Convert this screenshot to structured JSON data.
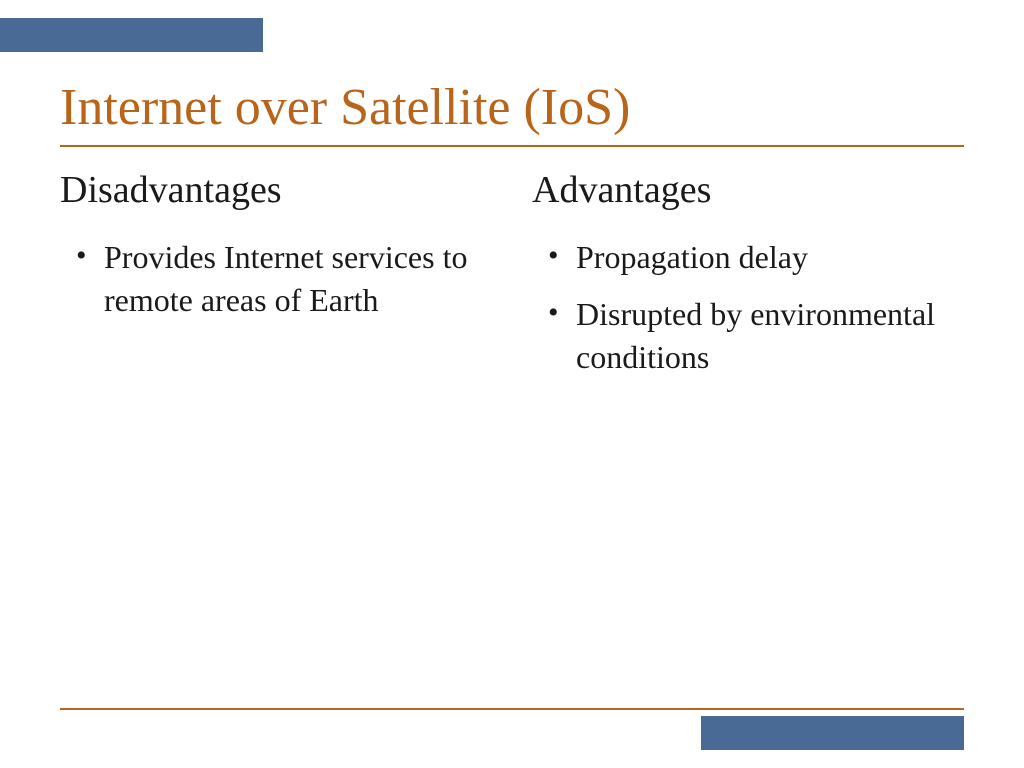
{
  "title": "Internet over Satellite (IoS)",
  "colors": {
    "accent_blue": "#4a6a96",
    "accent_orange": "#b8641a",
    "text": "#1a1a1a",
    "background": "#ffffff"
  },
  "left_column": {
    "heading": "Disadvantages",
    "items": [
      "Provides Internet services to remote areas of Earth"
    ]
  },
  "right_column": {
    "heading": "Advantages",
    "items": [
      "Propagation delay",
      "Disrupted by environmental conditions"
    ]
  }
}
